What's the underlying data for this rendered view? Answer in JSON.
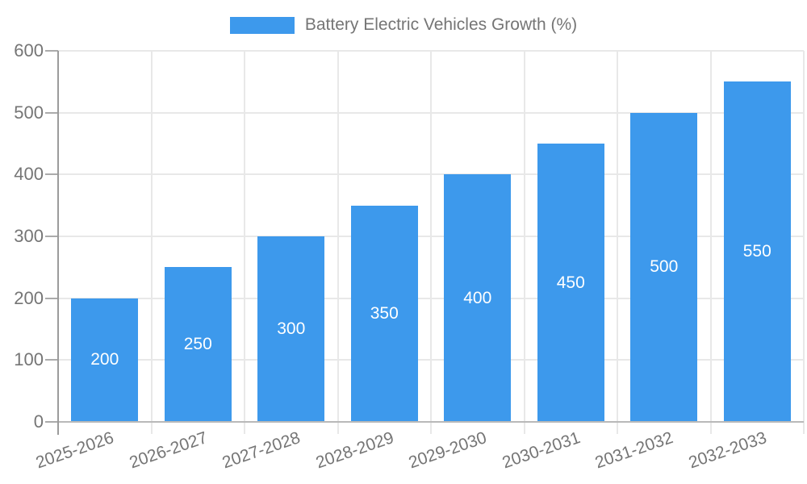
{
  "chart_data": {
    "type": "bar",
    "legend": {
      "label": "Battery Electric Vehicles Growth (%)",
      "position": "top-center"
    },
    "categories": [
      "2025-2026",
      "2026-2027",
      "2027-2028",
      "2028-2029",
      "2029-2030",
      "2030-2031",
      "2031-2032",
      "2032-2033"
    ],
    "values": [
      200,
      250,
      300,
      350,
      400,
      450,
      500,
      550
    ],
    "bar_labels": [
      "200",
      "250",
      "300",
      "350",
      "400",
      "450",
      "500",
      "550"
    ],
    "title": "",
    "xlabel": "",
    "ylabel": "",
    "ylim": [
      0,
      600
    ],
    "yticks": [
      0,
      100,
      200,
      300,
      400,
      500,
      600
    ],
    "grid": true,
    "x_label_rotation_deg": -19,
    "colors": {
      "bar": "#3d99ec",
      "bar_label": "#ffffff",
      "axis_text": "#757575",
      "legend_text": "#757575"
    }
  }
}
